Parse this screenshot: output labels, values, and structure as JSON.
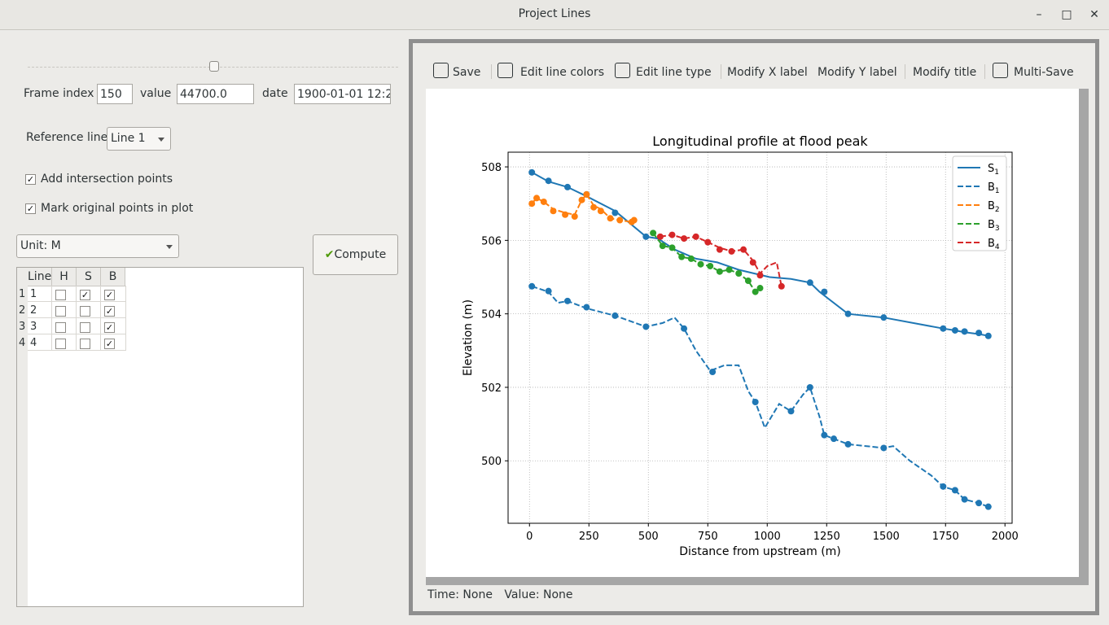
{
  "window": {
    "title": "Project Lines",
    "minimize": "–",
    "maximize": "□",
    "close": "✕"
  },
  "controls": {
    "frame_index_label": "Frame index",
    "frame_index_value": "150",
    "value_label": "value",
    "value_value": "44700.0",
    "date_label": "date",
    "date_value": "1900-01-01 12:2",
    "reference_line_label": "Reference line",
    "reference_line_value": "Line 1",
    "add_intersection_label": "Add intersection points",
    "add_intersection_checked": true,
    "mark_original_label": "Mark original points in plot",
    "mark_original_checked": true,
    "unit_value": "Unit: M",
    "compute_label": "Compute",
    "compute_icon": "check-icon"
  },
  "table": {
    "headers": [
      "Line",
      "H",
      "S",
      "B"
    ],
    "rows": [
      {
        "index": "1",
        "line": "1",
        "H": false,
        "S": true,
        "B": true
      },
      {
        "index": "2",
        "line": "2",
        "H": false,
        "S": false,
        "B": true
      },
      {
        "index": "3",
        "line": "3",
        "H": false,
        "S": false,
        "B": true
      },
      {
        "index": "4",
        "line": "4",
        "H": false,
        "S": false,
        "B": true
      }
    ]
  },
  "toolbar": {
    "save": "Save",
    "edit_line_colors": "Edit line colors",
    "edit_line_type": "Edit line type",
    "modify_x_label": "Modify X label",
    "modify_y_label": "Modify Y label",
    "modify_title": "Modify title",
    "multi_save": "Multi-Save"
  },
  "status": {
    "time": "Time: None",
    "value": "Value: None"
  },
  "chart_data": {
    "type": "line",
    "title": "Longitudinal profile at flood peak",
    "xlabel": "Distance from upstream (m)",
    "ylabel": "Elevation (m)",
    "xlim": [
      -90,
      2030
    ],
    "ylim": [
      498.3,
      508.4
    ],
    "xticks": [
      0,
      250,
      500,
      750,
      1000,
      1250,
      1500,
      1750,
      2000
    ],
    "yticks": [
      500,
      502,
      504,
      506,
      508
    ],
    "grid": true,
    "legend_position": "top-right",
    "series": [
      {
        "name": "S1",
        "color": "#1f77b4",
        "style": "solid",
        "x": [
          10,
          80,
          160,
          240,
          360,
          490,
          540,
          610,
          700,
          790,
          880,
          1010,
          1100,
          1180,
          1220,
          1340,
          1490,
          1740,
          1790,
          1830,
          1890,
          1930
        ],
        "y": [
          507.85,
          507.6,
          507.45,
          507.2,
          506.8,
          506.1,
          506.05,
          505.75,
          505.5,
          505.4,
          505.2,
          505.0,
          504.95,
          504.85,
          504.6,
          504.0,
          503.9,
          503.6,
          503.55,
          503.5,
          503.45,
          503.4
        ],
        "markers_x": [
          10,
          80,
          160,
          240,
          360,
          490,
          1180,
          1240,
          1340,
          1490,
          1740,
          1790,
          1830,
          1890,
          1930
        ],
        "markers_y": [
          507.85,
          507.62,
          507.45,
          507.25,
          506.75,
          506.1,
          504.85,
          504.6,
          504.0,
          503.9,
          503.6,
          503.55,
          503.52,
          503.48,
          503.4
        ]
      },
      {
        "name": "B1",
        "color": "#1f77b4",
        "style": "dashed",
        "x": [
          10,
          80,
          120,
          160,
          240,
          360,
          490,
          560,
          610,
          650,
          700,
          760,
          820,
          880,
          920,
          950,
          990,
          1050,
          1100,
          1150,
          1180,
          1220,
          1240,
          1280,
          1340,
          1490,
          1530,
          1600,
          1690,
          1740,
          1790,
          1830,
          1890,
          1930
        ],
        "y": [
          504.75,
          504.6,
          504.3,
          504.35,
          504.15,
          503.95,
          503.65,
          503.75,
          503.9,
          503.6,
          503.0,
          502.45,
          502.6,
          502.6,
          501.9,
          501.6,
          500.9,
          501.55,
          501.35,
          501.8,
          502.0,
          501.2,
          500.7,
          500.6,
          500.45,
          500.35,
          500.4,
          500.0,
          499.6,
          499.3,
          499.2,
          498.95,
          498.85,
          498.75
        ],
        "markers_x": [
          10,
          80,
          160,
          240,
          360,
          490,
          650,
          770,
          950,
          1100,
          1180,
          1240,
          1280,
          1340,
          1490,
          1740,
          1790,
          1830,
          1890,
          1930
        ],
        "markers_y": [
          504.75,
          504.62,
          504.35,
          504.18,
          503.95,
          503.65,
          503.6,
          502.42,
          501.6,
          501.35,
          502.0,
          500.7,
          500.6,
          500.45,
          500.35,
          499.3,
          499.2,
          498.95,
          498.85,
          498.75
        ]
      },
      {
        "name": "B2",
        "color": "#ff7f0e",
        "style": "dashed",
        "x": [
          10,
          30,
          60,
          100,
          150,
          190,
          220,
          240,
          270,
          300,
          340,
          380,
          430,
          440
        ],
        "y": [
          507.0,
          507.15,
          507.05,
          506.85,
          506.75,
          506.7,
          507.1,
          507.25,
          506.95,
          506.85,
          506.6,
          506.55,
          506.5,
          506.55
        ],
        "markers_x": [
          10,
          30,
          60,
          100,
          150,
          190,
          220,
          240,
          270,
          300,
          340,
          380,
          430,
          440
        ],
        "markers_y": [
          507.0,
          507.15,
          507.05,
          506.8,
          506.7,
          506.65,
          507.1,
          507.25,
          506.9,
          506.8,
          506.6,
          506.55,
          506.5,
          506.55
        ]
      },
      {
        "name": "B3",
        "color": "#2ca02c",
        "style": "dashed",
        "x": [
          520,
          560,
          600,
          640,
          680,
          720,
          760,
          800,
          840,
          880,
          920,
          950,
          970
        ],
        "y": [
          506.2,
          505.85,
          505.8,
          505.55,
          505.5,
          505.35,
          505.3,
          505.15,
          505.2,
          505.1,
          504.9,
          504.6,
          504.7
        ],
        "markers_x": [
          520,
          560,
          600,
          640,
          680,
          720,
          760,
          800,
          840,
          880,
          920,
          950,
          970
        ],
        "markers_y": [
          506.2,
          505.85,
          505.8,
          505.55,
          505.5,
          505.35,
          505.3,
          505.15,
          505.2,
          505.1,
          504.9,
          504.6,
          504.7
        ]
      },
      {
        "name": "B4",
        "color": "#d62728",
        "style": "dashed",
        "x": [
          550,
          600,
          650,
          700,
          750,
          800,
          850,
          900,
          940,
          970,
          1000,
          1040,
          1060
        ],
        "y": [
          506.1,
          506.15,
          506.05,
          506.1,
          505.95,
          505.8,
          505.7,
          505.75,
          505.45,
          505.1,
          505.3,
          505.4,
          504.75
        ],
        "markers_x": [
          550,
          600,
          650,
          700,
          750,
          800,
          850,
          900,
          940,
          970,
          1060
        ],
        "markers_y": [
          506.1,
          506.15,
          506.05,
          506.1,
          505.95,
          505.75,
          505.7,
          505.75,
          505.4,
          505.05,
          504.75
        ]
      }
    ]
  }
}
